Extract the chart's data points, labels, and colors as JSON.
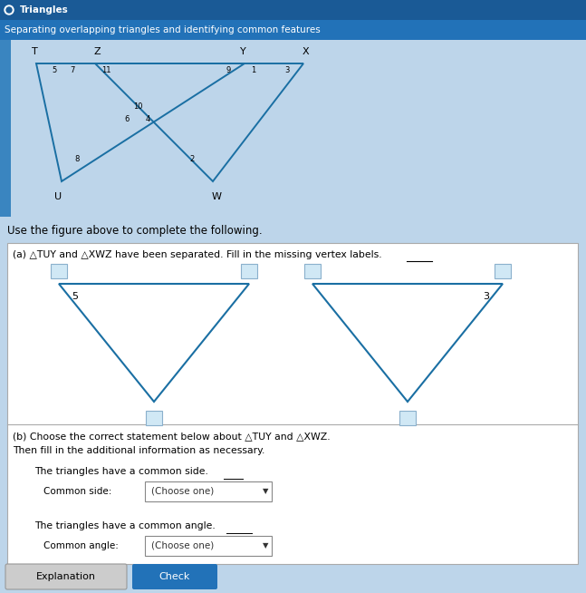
{
  "title": "Triangles",
  "subtitle": "Separating overlapping triangles and identifying common features",
  "bg_header_color": "#2272b8",
  "bg_main_color": "#bdd5ea",
  "tri_color": "#1a6fa3",
  "part_a_text": "(a) △TUY and △XWZ have been separated. Fill in the missing vertex labels.",
  "part_b_line1": "(b) Choose the correct statement below about △TUY and △XWZ.",
  "part_b_line2": "Then fill in the additional information as necessary.",
  "radio1_text": "The triangles have a common side.",
  "common_side_label": "Common side:",
  "choose_one_text": "(Choose one)",
  "radio2_text": "The triangles have a common angle.",
  "common_angle_label": "Common angle:",
  "choose_one2_text": "(Choose one)",
  "use_text": "Use the figure above to complete the following.",
  "btn_explanation": "Explanation",
  "btn_check": "Check"
}
